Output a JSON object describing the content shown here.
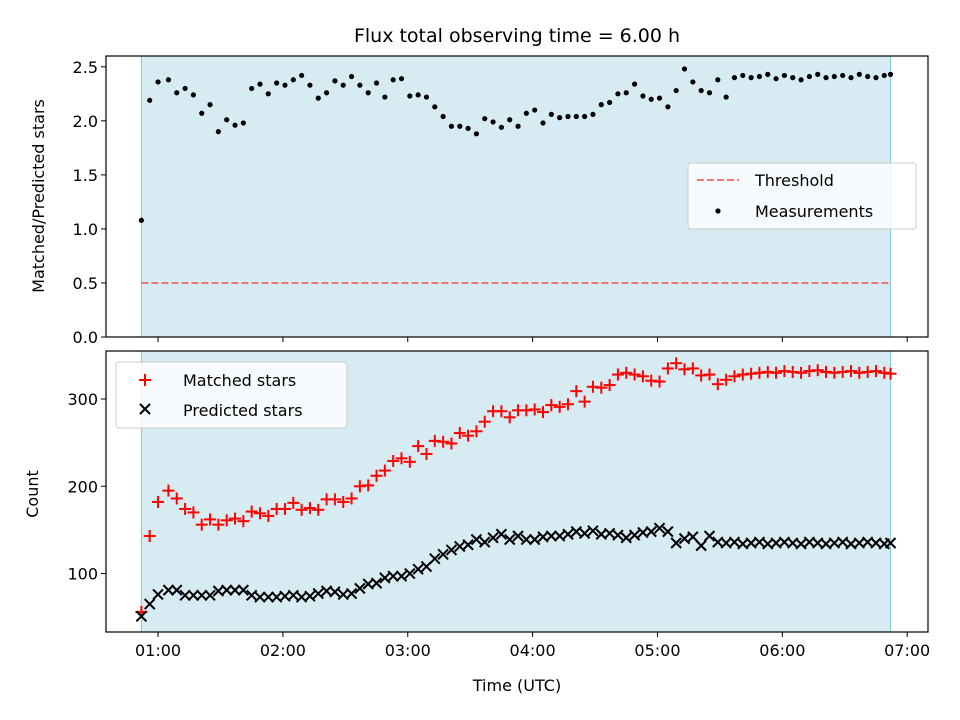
{
  "chart_data": {
    "type": "scatter",
    "title": "Flux total observing time = 6.00 h",
    "xlabel": "Time (UTC)",
    "xlim": [
      "00:35",
      "07:10"
    ],
    "x_ticks": [
      "01:00",
      "02:00",
      "03:00",
      "04:00",
      "05:00",
      "06:00",
      "07:00"
    ],
    "shaded_span": [
      "00:52",
      "06:52"
    ],
    "shade_color": "#add8e6",
    "grid": false,
    "times": [
      "00:52",
      "00:56",
      "01:00",
      "01:05",
      "01:09",
      "01:13",
      "01:17",
      "01:21",
      "01:25",
      "01:29",
      "01:33",
      "01:37",
      "01:41",
      "01:45",
      "01:49",
      "01:53",
      "01:57",
      "02:01",
      "02:05",
      "02:09",
      "02:13",
      "02:17",
      "02:21",
      "02:25",
      "02:29",
      "02:33",
      "02:37",
      "02:41",
      "02:45",
      "02:49",
      "02:53",
      "02:57",
      "03:01",
      "03:05",
      "03:09",
      "03:13",
      "03:17",
      "03:21",
      "03:25",
      "03:29",
      "03:33",
      "03:37",
      "03:41",
      "03:45",
      "03:49",
      "03:53",
      "03:57",
      "04:01",
      "04:05",
      "04:09",
      "04:13",
      "04:17",
      "04:21",
      "04:25",
      "04:29",
      "04:33",
      "04:37",
      "04:41",
      "04:45",
      "04:49",
      "04:53",
      "04:57",
      "05:01",
      "05:05",
      "05:09",
      "05:13",
      "05:17",
      "05:21",
      "05:25",
      "05:29",
      "05:33",
      "05:37",
      "05:41",
      "05:45",
      "05:49",
      "05:53",
      "05:57",
      "06:01",
      "06:05",
      "06:09",
      "06:13",
      "06:17",
      "06:21",
      "06:25",
      "06:29",
      "06:33",
      "06:37",
      "06:41",
      "06:45",
      "06:49",
      "06:52"
    ],
    "panels": [
      {
        "ylabel": "Matched/Predicted stars",
        "ylim": [
          0,
          2.6
        ],
        "y_ticks": [
          "0.0",
          "0.5",
          "1.0",
          "1.5",
          "2.0",
          "2.5"
        ],
        "legend_position": "center-right",
        "series": [
          {
            "name": "Threshold",
            "kind": "dashed-line",
            "color": "#f07575",
            "value": 0.5
          },
          {
            "name": "Measurements",
            "kind": "dots",
            "color": "#000000",
            "values": [
              1.08,
              2.19,
              2.36,
              2.38,
              2.26,
              2.3,
              2.24,
              2.07,
              2.15,
              1.9,
              2.01,
              1.96,
              1.98,
              2.3,
              2.34,
              2.25,
              2.35,
              2.33,
              2.38,
              2.42,
              2.33,
              2.21,
              2.26,
              2.37,
              2.33,
              2.41,
              2.33,
              2.26,
              2.35,
              2.22,
              2.38,
              2.39,
              2.23,
              2.24,
              2.22,
              2.13,
              2.04,
              1.95,
              1.95,
              1.93,
              1.88,
              2.02,
              1.99,
              1.94,
              2.01,
              1.95,
              2.07,
              2.1,
              1.98,
              2.06,
              2.03,
              2.04,
              2.04,
              2.04,
              2.06,
              2.15,
              2.17,
              2.25,
              2.26,
              2.34,
              2.23,
              2.2,
              2.21,
              2.13,
              2.28,
              2.48,
              2.36,
              2.28,
              2.26,
              2.38,
              2.22,
              2.4,
              2.42,
              2.4,
              2.41,
              2.43,
              2.39,
              2.42,
              2.4,
              2.38,
              2.41,
              2.43,
              2.4,
              2.41,
              2.42,
              2.4,
              2.43,
              2.41,
              2.4,
              2.42,
              2.43
            ]
          }
        ]
      },
      {
        "ylabel": "Count",
        "ylim": [
          33,
          355
        ],
        "y_ticks": [
          "100",
          "200",
          "300"
        ],
        "legend_position": "upper-left",
        "series": [
          {
            "name": "Matched stars",
            "kind": "plus",
            "color": "#ff0000",
            "values": [
              56,
              143,
              182,
              195,
              186,
              174,
              170,
              156,
              162,
              156,
              161,
              163,
              160,
              171,
              169,
              166,
              174,
              174,
              181,
              173,
              175,
              173,
              185,
              185,
              182,
              186,
              200,
              201,
              212,
              218,
              229,
              232,
              228,
              246,
              237,
              252,
              251,
              249,
              261,
              258,
              263,
              274,
              286,
              286,
              279,
              287,
              287,
              288,
              285,
              293,
              291,
              294,
              309,
              297,
              314,
              313,
              316,
              328,
              330,
              328,
              326,
              321,
              320,
              335,
              341,
              334,
              335,
              327,
              328,
              317,
              322,
              326,
              328,
              329,
              330,
              331,
              330,
              332,
              331,
              330,
              332,
              333,
              331,
              330,
              331,
              332,
              330,
              331,
              332,
              330,
              329
            ]
          },
          {
            "name": "Predicted stars",
            "kind": "cross",
            "color": "#000000",
            "values": [
              51,
              65,
              76,
              81,
              81,
              75,
              75,
              75,
              75,
              80,
              81,
              81,
              81,
              75,
              73,
              73,
              73,
              74,
              75,
              73,
              74,
              77,
              80,
              79,
              76,
              77,
              83,
              88,
              89,
              95,
              97,
              97,
              100,
              105,
              108,
              117,
              122,
              127,
              131,
              133,
              139,
              136,
              141,
              145,
              139,
              143,
              139,
              139,
              142,
              143,
              143,
              145,
              148,
              146,
              149,
              145,
              146,
              144,
              141,
              144,
              147,
              148,
              152,
              148,
              135,
              140,
              142,
              132,
              143,
              136,
              135,
              136,
              134,
              135,
              136,
              134,
              135,
              136,
              135,
              134,
              136,
              135,
              134,
              135,
              136,
              134,
              135,
              136,
              135,
              134,
              135
            ]
          }
        ]
      }
    ]
  }
}
